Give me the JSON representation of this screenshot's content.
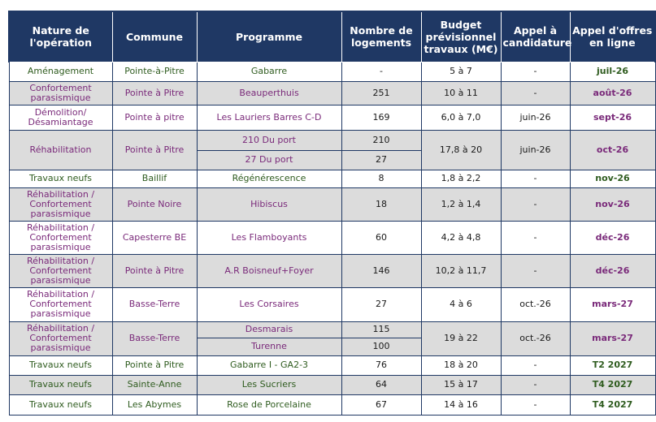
{
  "headers": {
    "nature": "Nature de l'opération",
    "commune": "Commune",
    "programme": "Programme",
    "logements": "Nombre de logements",
    "budget": "Budget prévisionnel travaux (M€)",
    "appel_cand": "Appel à candidature",
    "appel_offres": "Appel d'offres en ligne"
  },
  "rows": [
    {
      "nature": "Aménagement",
      "commune": "Pointe-à-Pitre",
      "programme": "Gabarre",
      "logements": "-",
      "budget": "5 à 7",
      "appel_cand": "-",
      "appel_offres": "juil-26"
    },
    {
      "nature": "Confortement parasismique",
      "commune": "Pointe à Pitre",
      "programme": "Beauperthuis",
      "logements": "251",
      "budget": "10 à 11",
      "appel_cand": "-",
      "appel_offres": "août-26"
    },
    {
      "nature": "Démolition/ Désamiantage",
      "commune": "Pointe à pitre",
      "programme": "Les Lauriers Barres C-D",
      "logements": "169",
      "budget": "6,0 à 7,0",
      "appel_cand": "juin-26",
      "appel_offres": "sept-26"
    },
    {
      "nature": "Réhabilitation",
      "commune": "Pointe à Pitre",
      "programme": "210 Du port",
      "programme2": "27  Du port",
      "logements": "210",
      "logements2": "27",
      "budget": "17,8 à 20",
      "appel_cand": "juin-26",
      "appel_offres": "oct-26"
    },
    {
      "nature": "Travaux neufs",
      "commune": "Baillif",
      "programme": "Régénérescence",
      "logements": "8",
      "budget": "1,8 à 2,2",
      "appel_cand": "-",
      "appel_offres": "nov-26"
    },
    {
      "nature": "Réhabilitation / Confortement parasismique",
      "commune": "Pointe Noire",
      "programme": "Hibiscus",
      "logements": "18",
      "budget": "1,2 à 1,4",
      "appel_cand": "-",
      "appel_offres": "nov-26"
    },
    {
      "nature": "Réhabilitation / Confortement parasismique",
      "commune": "Capesterre BE",
      "programme": "Les Flamboyants",
      "logements": "60",
      "budget": "4,2 à 4,8",
      "appel_cand": "-",
      "appel_offres": "déc-26"
    },
    {
      "nature": "Réhabilitation / Confortement parasismique",
      "commune": "Pointe à Pitre",
      "programme": "A.R Boisneuf+Foyer",
      "logements": "146",
      "budget": "10,2 à 11,7",
      "appel_cand": "-",
      "appel_offres": "déc-26"
    },
    {
      "nature": "Réhabilitation / Confortement parasismique",
      "commune": "Basse-Terre",
      "programme": "Les Corsaires",
      "logements": "27",
      "budget": "4 à 6",
      "appel_cand": "oct.-26",
      "appel_offres": "mars-27"
    },
    {
      "nature": "Réhabilitation / Confortement parasismique",
      "commune": "Basse-Terre",
      "programme": "Desmarais",
      "programme2": "Turenne",
      "logements": "115",
      "logements2": "100",
      "budget": "19 à 22",
      "appel_cand": "oct.-26",
      "appel_offres": "mars-27"
    },
    {
      "nature": "Travaux neufs",
      "commune": "Pointe à Pitre",
      "programme": "Gabarre I - GA2-3",
      "logements": "76",
      "budget": "18 à 20",
      "appel_cand": "-",
      "appel_offres": "T2 2027"
    },
    {
      "nature": "Travaux neufs",
      "commune": "Sainte-Anne",
      "programme": "Les Sucriers",
      "logements": "64",
      "budget": "15 à 17",
      "appel_cand": "-",
      "appel_offres": "T4 2027"
    },
    {
      "nature": "Travaux neufs",
      "commune": "Les Abymes",
      "programme": "Rose de Porcelaine",
      "logements": "67",
      "budget": "14 à 16",
      "appel_cand": "-",
      "appel_offres": "T4 2027"
    }
  ]
}
